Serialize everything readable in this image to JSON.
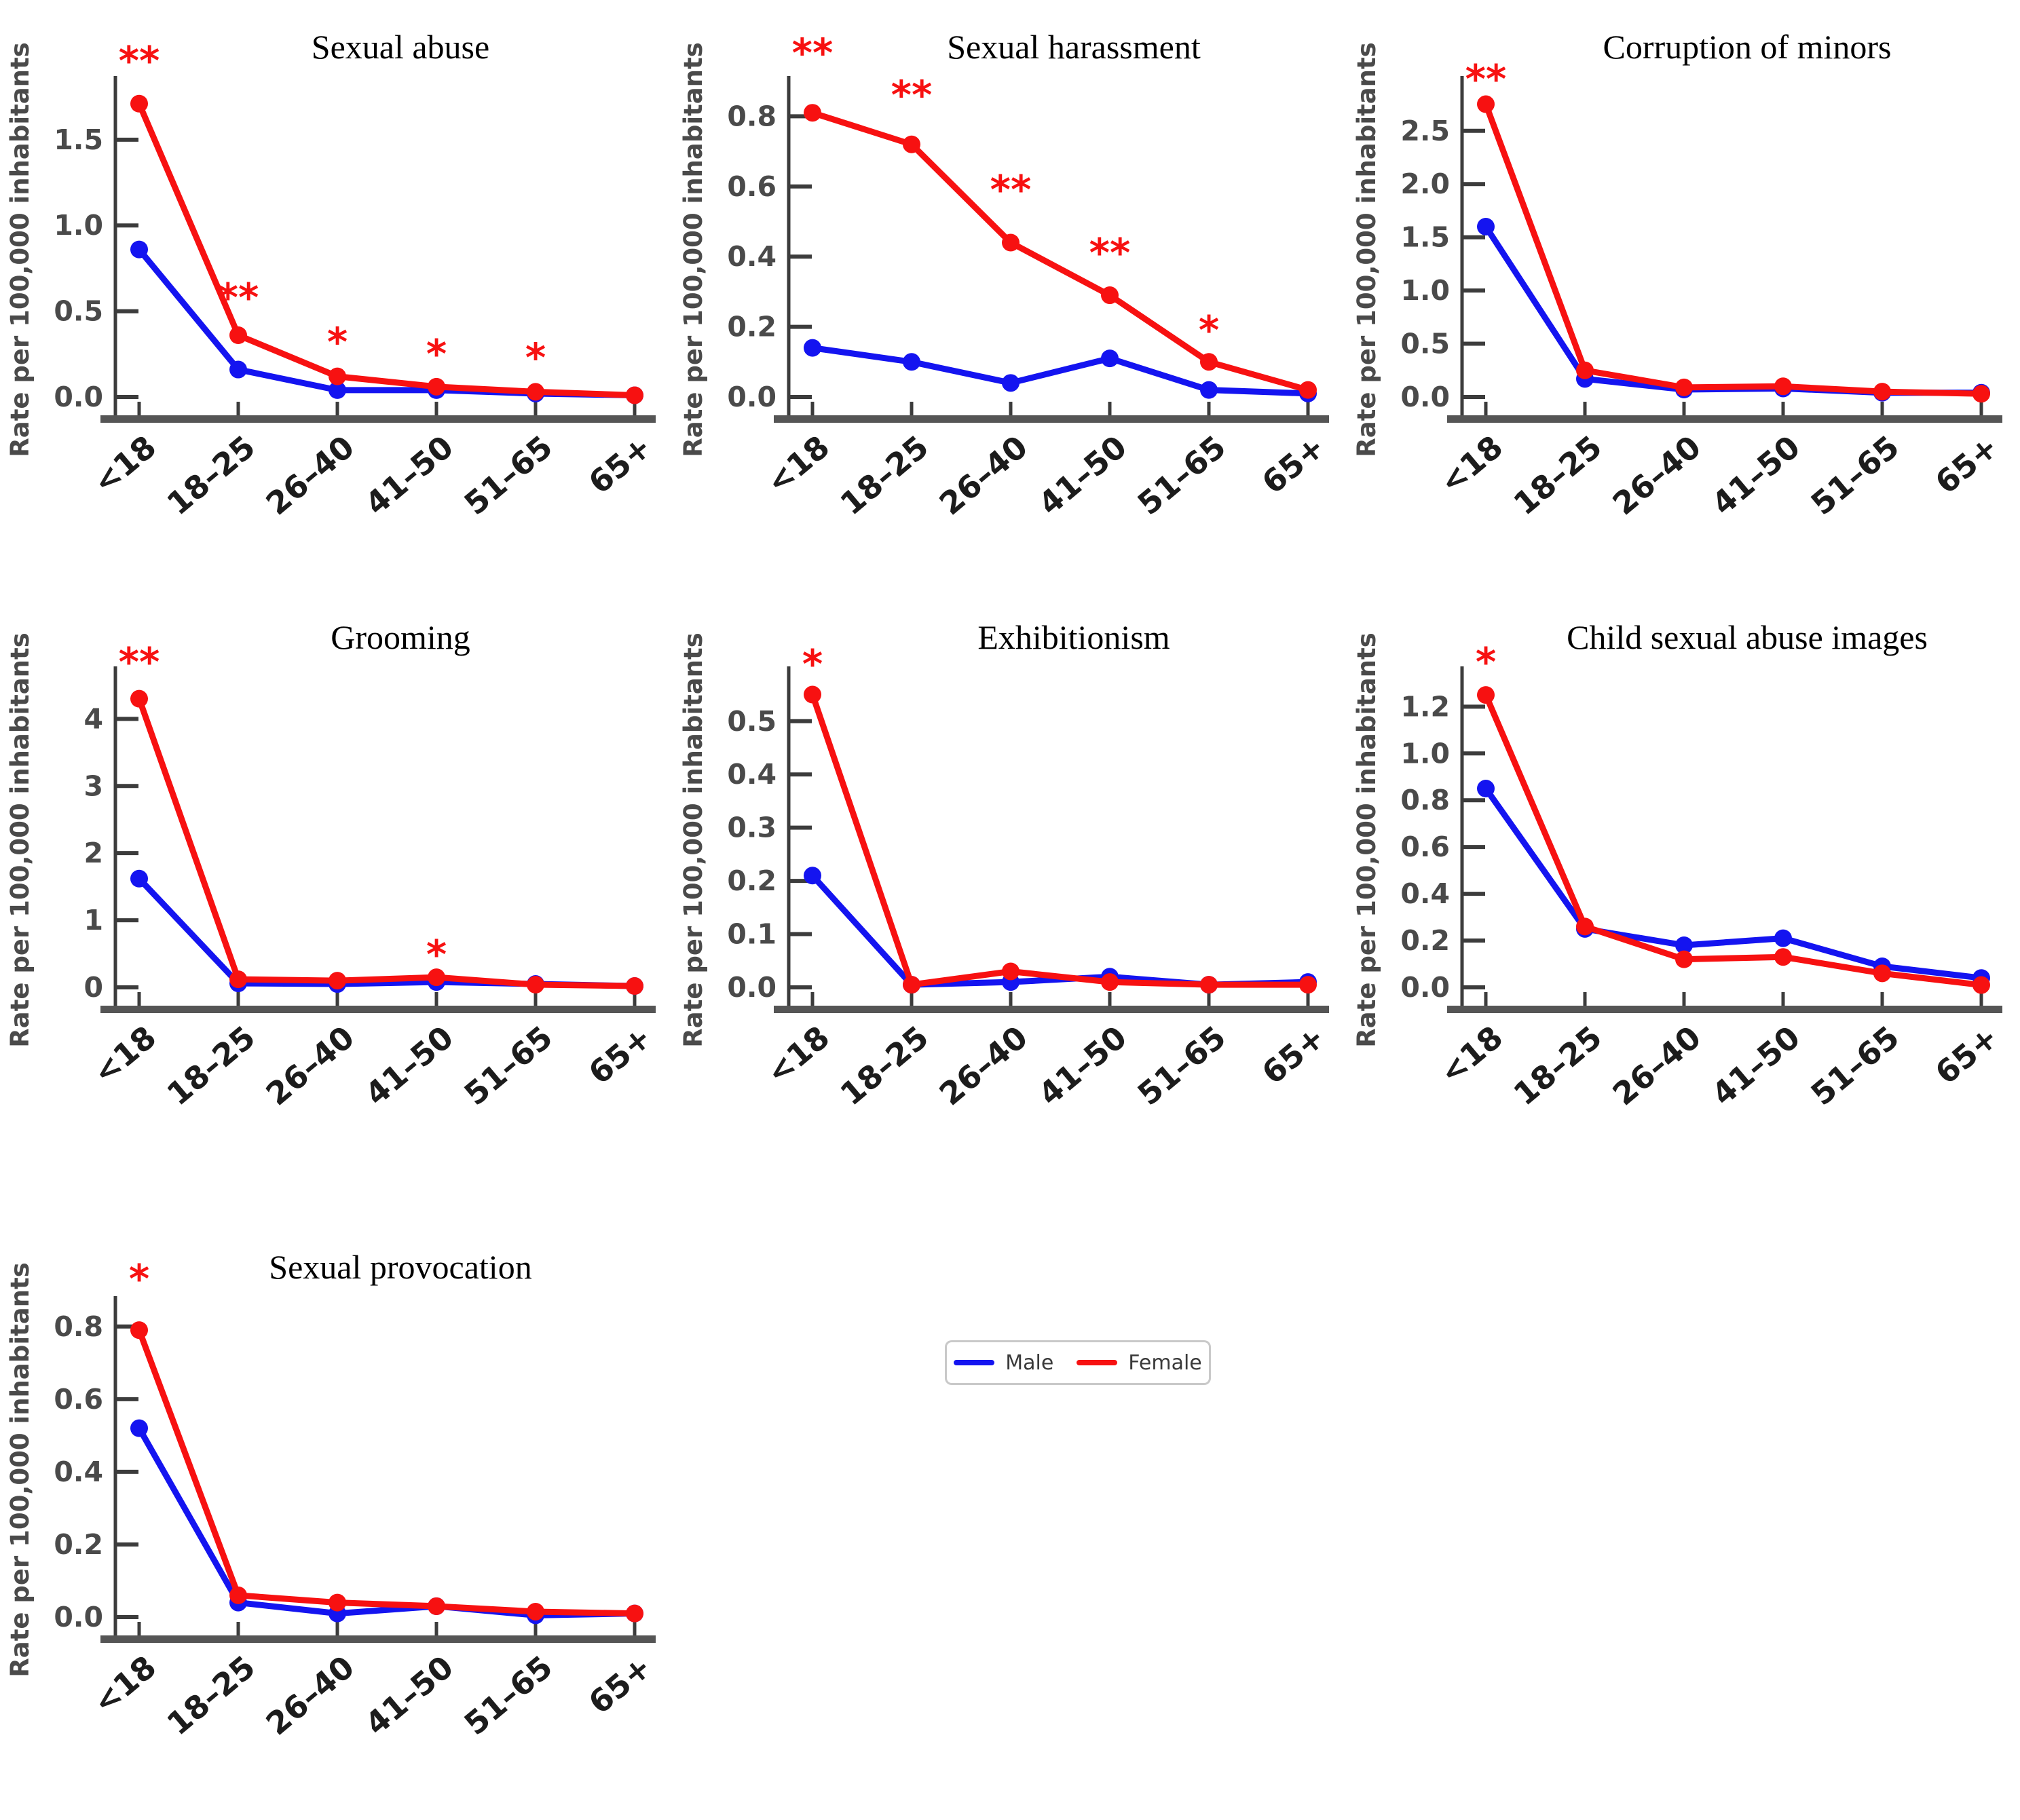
{
  "figure": {
    "y_axis_label": "Rate per 100,000 inhabitants",
    "categories": [
      "<18",
      "18–25",
      "26–40",
      "41–50",
      "51–65",
      "65+"
    ],
    "colors": {
      "male": "#1414f0",
      "female": "#f71111",
      "significance": "#f71111",
      "axis": "#3c3c3c",
      "baseline": "#555555",
      "tick_text": "#4a4a4a",
      "title_text": "#000000",
      "x_label_text": "#1c1c1c"
    }
  },
  "legend": {
    "male_label": "Male",
    "female_label": "Female"
  },
  "chart_data": [
    {
      "type": "line",
      "title": "Sexual abuse",
      "categories": [
        "<18",
        "18–25",
        "26–40",
        "41–50",
        "51–65",
        "65+"
      ],
      "ylabel": "Rate per 100,000 inhabitants",
      "ylim": [
        0,
        1.8
      ],
      "ytick_values": [
        0.0,
        0.5,
        1.0,
        1.5
      ],
      "ytick_labels": [
        "0.0",
        "0.5",
        "1.0",
        "1.5"
      ],
      "series": [
        {
          "name": "Male",
          "values": [
            0.86,
            0.16,
            0.04,
            0.04,
            0.02,
            0.01
          ]
        },
        {
          "name": "Female",
          "values": [
            1.71,
            0.36,
            0.12,
            0.06,
            0.03,
            0.01
          ]
        }
      ],
      "significance": [
        {
          "category": "<18",
          "marker": "**",
          "y": 2.0
        },
        {
          "category": "18–25",
          "marker": "**",
          "y": 0.62
        },
        {
          "category": "26–40",
          "marker": "*",
          "y": 0.36
        },
        {
          "category": "41–50",
          "marker": "*",
          "y": 0.29
        },
        {
          "category": "51–65",
          "marker": "*",
          "y": 0.27
        }
      ]
    },
    {
      "type": "line",
      "title": "Sexual harassment",
      "categories": [
        "<18",
        "18–25",
        "26–40",
        "41–50",
        "51–65",
        "65+"
      ],
      "ylabel": "Rate per 100,000 inhabitants",
      "ylim": [
        0,
        0.88
      ],
      "ytick_values": [
        0.0,
        0.2,
        0.4,
        0.6,
        0.8
      ],
      "ytick_labels": [
        "0.0",
        "0.2",
        "0.4",
        "0.6",
        "0.8"
      ],
      "series": [
        {
          "name": "Male",
          "values": [
            0.14,
            0.1,
            0.04,
            0.11,
            0.02,
            0.01
          ]
        },
        {
          "name": "Female",
          "values": [
            0.81,
            0.72,
            0.44,
            0.29,
            0.1,
            0.02
          ]
        }
      ],
      "significance": [
        {
          "category": "<18",
          "marker": "**",
          "y": 1.0
        },
        {
          "category": "18–25",
          "marker": "**",
          "y": 0.88
        },
        {
          "category": "26–40",
          "marker": "**",
          "y": 0.61
        },
        {
          "category": "41–50",
          "marker": "**",
          "y": 0.43
        },
        {
          "category": "51–65",
          "marker": "*",
          "y": 0.21
        }
      ]
    },
    {
      "type": "line",
      "title": "Corruption of minors",
      "categories": [
        "<18",
        "18–25",
        "26–40",
        "41–50",
        "51–65",
        "65+"
      ],
      "ylabel": "Rate per 100,000 inhabitants",
      "ylim": [
        0,
        2.9
      ],
      "ytick_values": [
        0.0,
        0.5,
        1.0,
        1.5,
        2.0,
        2.5
      ],
      "ytick_labels": [
        "0.0",
        "0.5",
        "1.0",
        "1.5",
        "2.0",
        "2.5"
      ],
      "series": [
        {
          "name": "Male",
          "values": [
            1.6,
            0.17,
            0.07,
            0.08,
            0.04,
            0.04
          ]
        },
        {
          "name": "Female",
          "values": [
            2.75,
            0.25,
            0.09,
            0.1,
            0.05,
            0.03
          ]
        }
      ],
      "significance": [
        {
          "category": "<18",
          "marker": "**",
          "y": 3.05
        }
      ]
    },
    {
      "type": "line",
      "title": "Grooming",
      "categories": [
        "<18",
        "18–25",
        "26–40",
        "41–50",
        "51–65",
        "65+"
      ],
      "ylabel": "Rate per 100,000 inhabitants",
      "ylim": [
        0,
        4.6
      ],
      "ytick_values": [
        0,
        1,
        2,
        3,
        4
      ],
      "ytick_labels": [
        "0",
        "1",
        "2",
        "3",
        "4"
      ],
      "series": [
        {
          "name": "Male",
          "values": [
            1.62,
            0.06,
            0.05,
            0.08,
            0.05,
            0.02
          ]
        },
        {
          "name": "Female",
          "values": [
            4.3,
            0.12,
            0.1,
            0.15,
            0.04,
            0.02
          ]
        }
      ],
      "significance": [
        {
          "category": "<18",
          "marker": "**",
          "y": 4.95
        },
        {
          "category": "41–50",
          "marker": "*",
          "y": 0.59
        }
      ]
    },
    {
      "type": "line",
      "title": "Exhibitionism",
      "categories": [
        "<18",
        "18–25",
        "26–40",
        "41–50",
        "51–65",
        "65+"
      ],
      "ylabel": "Rate per 100,000 inhabitants",
      "ylim": [
        0,
        0.58
      ],
      "ytick_values": [
        0.0,
        0.1,
        0.2,
        0.3,
        0.4,
        0.5
      ],
      "ytick_labels": [
        "0.0",
        "0.1",
        "0.2",
        "0.3",
        "0.4",
        "0.5"
      ],
      "series": [
        {
          "name": "Male",
          "values": [
            0.21,
            0.005,
            0.01,
            0.02,
            0.005,
            0.01
          ]
        },
        {
          "name": "Female",
          "values": [
            0.55,
            0.005,
            0.03,
            0.01,
            0.005,
            0.005
          ]
        }
      ],
      "significance": [
        {
          "category": "<18",
          "marker": "*",
          "y": 0.62
        }
      ]
    },
    {
      "type": "line",
      "title": "Child sexual abuse images",
      "categories": [
        "<18",
        "18–25",
        "26–40",
        "41–50",
        "51–65",
        "65+"
      ],
      "ylabel": "Rate per 100,000 inhabitants",
      "ylim": [
        0,
        1.32
      ],
      "ytick_values": [
        0.0,
        0.2,
        0.4,
        0.6,
        0.8,
        1.0,
        1.2
      ],
      "ytick_labels": [
        "0.0",
        "0.2",
        "0.4",
        "0.6",
        "0.8",
        "1.0",
        "1.2"
      ],
      "series": [
        {
          "name": "Male",
          "values": [
            0.85,
            0.25,
            0.18,
            0.21,
            0.09,
            0.04
          ]
        },
        {
          "name": "Female",
          "values": [
            1.25,
            0.26,
            0.12,
            0.13,
            0.06,
            0.01
          ]
        }
      ],
      "significance": [
        {
          "category": "<18",
          "marker": "*",
          "y": 1.42
        }
      ]
    },
    {
      "type": "line",
      "title": "Sexual provocation",
      "categories": [
        "<18",
        "18–25",
        "26–40",
        "41–50",
        "51–65",
        "65+"
      ],
      "ylabel": "Rate per 100,000 inhabitants",
      "ylim": [
        0,
        0.85
      ],
      "ytick_values": [
        0.0,
        0.2,
        0.4,
        0.6,
        0.8
      ],
      "ytick_labels": [
        "0.0",
        "0.2",
        "0.4",
        "0.6",
        "0.8"
      ],
      "series": [
        {
          "name": "Male",
          "values": [
            0.52,
            0.04,
            0.01,
            0.03,
            0.005,
            0.01
          ]
        },
        {
          "name": "Female",
          "values": [
            0.79,
            0.06,
            0.04,
            0.03,
            0.015,
            0.01
          ]
        }
      ],
      "significance": [
        {
          "category": "<18",
          "marker": "*",
          "y": 0.95
        }
      ]
    }
  ]
}
